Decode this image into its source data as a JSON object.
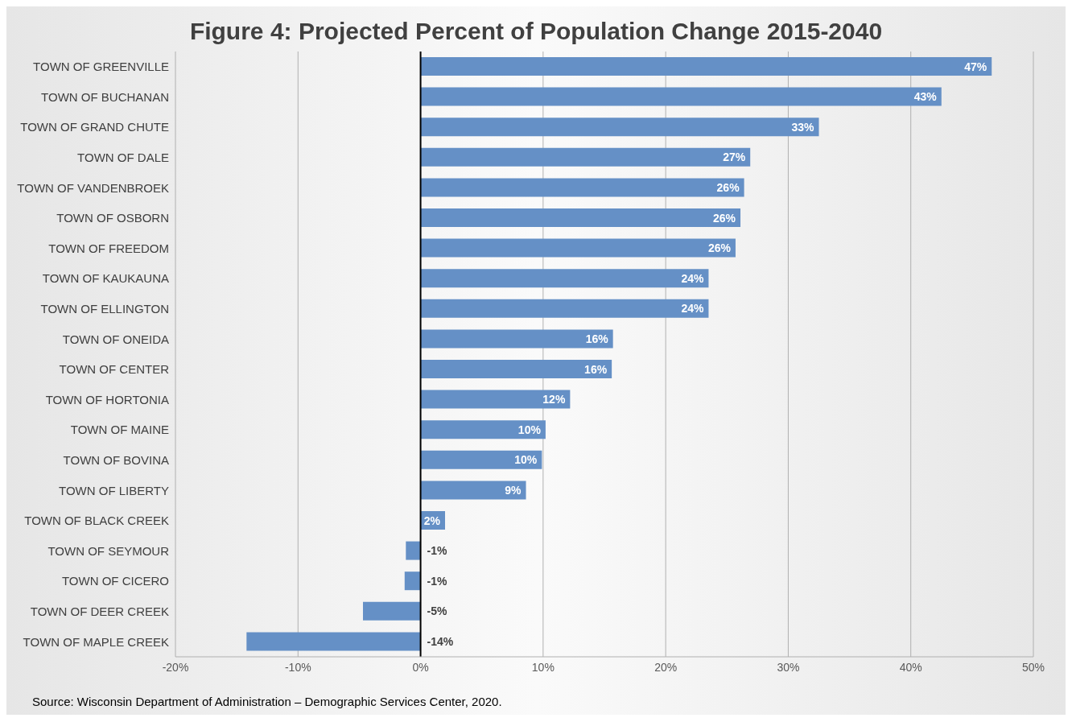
{
  "chart_data": {
    "type": "bar",
    "orientation": "horizontal",
    "title": "Figure 4:  Projected Percent of Population Change 2015-2040",
    "categories": [
      "TOWN OF GREENVILLE",
      "TOWN OF BUCHANAN",
      "TOWN OF GRAND CHUTE",
      "TOWN OF DALE",
      "TOWN OF VANDENBROEK",
      "TOWN OF OSBORN",
      "TOWN OF FREEDOM",
      "TOWN OF KAUKAUNA",
      "TOWN OF ELLINGTON",
      "TOWN OF ONEIDA",
      "TOWN OF CENTER",
      "TOWN OF HORTONIA",
      "TOWN OF MAINE",
      "TOWN OF BOVINA",
      "TOWN OF LIBERTY",
      "TOWN OF BLACK CREEK",
      "TOWN OF SEYMOUR",
      "TOWN OF CICERO",
      "TOWN OF DEER CREEK",
      "TOWN OF MAPLE CREEK"
    ],
    "values": [
      46.6,
      42.5,
      32.5,
      26.9,
      26.4,
      26.1,
      25.7,
      23.5,
      23.5,
      15.7,
      15.6,
      12.2,
      10.2,
      9.9,
      8.6,
      2.0,
      -1.2,
      -1.3,
      -4.7,
      -14.2
    ],
    "value_labels": [
      "47%",
      "43%",
      "33%",
      "27%",
      "26%",
      "26%",
      "26%",
      "24%",
      "24%",
      "16%",
      "16%",
      "12%",
      "10%",
      "10%",
      "9%",
      "2%",
      "-1%",
      "-1%",
      "-5%",
      "-14%"
    ],
    "color": "#6590c6",
    "xlim": [
      -20,
      50
    ],
    "xticks": [
      {
        "value": -20,
        "label": "-20%"
      },
      {
        "value": -10,
        "label": "-10%"
      },
      {
        "value": 0,
        "label": "0%"
      },
      {
        "value": 10,
        "label": "10%"
      },
      {
        "value": 20,
        "label": "20%"
      },
      {
        "value": 30,
        "label": "30%"
      },
      {
        "value": 40,
        "label": "40%"
      },
      {
        "value": 50,
        "label": "50%"
      }
    ],
    "grid": "x",
    "legend": false,
    "annotations": [
      "Source: Wisconsin Department of Administration – Demographic Services Center, 2020."
    ]
  }
}
